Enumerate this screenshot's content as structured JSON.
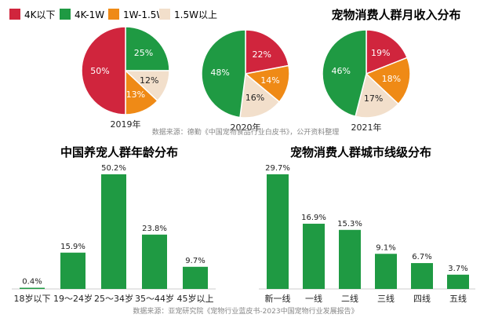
{
  "colors": {
    "under4k": "#d0253d",
    "k4to1w": "#1f9a43",
    "w1to15": "#ef8a16",
    "over15": "#f2dfcb",
    "bar": "#1f9a43",
    "text": "#222222",
    "source": "#888888"
  },
  "income": {
    "title": "宠物消费人群月收入分布",
    "legend": [
      "4K以下",
      "4K-1W",
      "1W-1.5W",
      "1.5W以上"
    ],
    "source": "数据来源：德勤《中国宠物食品行业白皮书》，公开资料整理"
  },
  "age": {
    "title": "中国养宠人群年龄分布"
  },
  "city": {
    "title": "宠物消费人群城市线级分布"
  },
  "footer": {
    "source": "数据来源：亚宠研究院《宠物行业蓝皮书-2023中国宠物行业发展报告》"
  },
  "chart_data": [
    {
      "type": "pie",
      "title": "2019年",
      "categories": [
        "4K以下",
        "4K-1W",
        "1W-1.5W",
        "1.5W以上"
      ],
      "values": [
        50,
        25,
        13,
        12
      ],
      "labels": [
        "50%",
        "25%",
        "13%",
        "12%"
      ]
    },
    {
      "type": "pie",
      "title": "2020年",
      "categories": [
        "4K以下",
        "4K-1W",
        "1W-1.5W",
        "1.5W以上"
      ],
      "values": [
        22,
        48,
        14,
        16
      ],
      "labels": [
        "22%",
        "48%",
        "14%",
        "16%"
      ]
    },
    {
      "type": "pie",
      "title": "2021年",
      "categories": [
        "4K以下",
        "4K-1W",
        "1W-1.5W",
        "1.5W以上"
      ],
      "values": [
        19,
        46,
        18,
        17
      ],
      "labels": [
        "19%",
        "46%",
        "18%",
        "17%"
      ]
    },
    {
      "type": "bar",
      "title": "中国养宠人群年龄分布",
      "categories": [
        "18岁以下",
        "19～24岁",
        "25～34岁",
        "35～44岁",
        "45岁以上"
      ],
      "values": [
        0.4,
        15.9,
        50.2,
        23.8,
        9.7
      ],
      "labels": [
        "0.4%",
        "15.9%",
        "50.2%",
        "23.8%",
        "9.7%"
      ]
    },
    {
      "type": "bar",
      "title": "宠物消费人群城市线级分布",
      "categories": [
        "新一线",
        "一线",
        "二线",
        "三线",
        "四线",
        "五线"
      ],
      "values": [
        29.7,
        16.9,
        15.3,
        9.1,
        6.7,
        3.7
      ],
      "labels": [
        "29.7%",
        "16.9%",
        "15.3%",
        "9.1%",
        "6.7%",
        "3.7%"
      ]
    }
  ]
}
